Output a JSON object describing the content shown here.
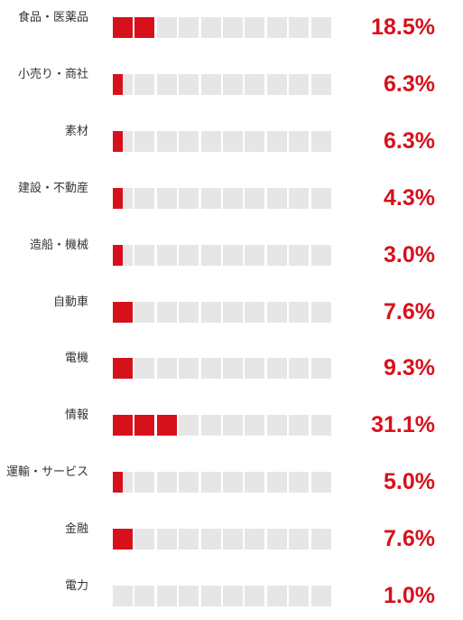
{
  "chart_data": {
    "type": "bar",
    "orientation": "horizontal",
    "categories": [
      "食品・医薬品",
      "小売り・商社",
      "素材",
      "建設・不動産",
      "造船・機械",
      "自動車",
      "電機",
      "情報",
      "運輸・サービス",
      "金融",
      "電力"
    ],
    "values": [
      18.5,
      6.3,
      6.3,
      4.3,
      3.0,
      7.6,
      9.3,
      31.1,
      5.0,
      7.6,
      1.0
    ],
    "value_labels": [
      "18.5%",
      "6.3%",
      "6.3%",
      "4.3%",
      "3.0%",
      "7.6%",
      "9.3%",
      "31.1%",
      "5.0%",
      "7.6%",
      "1.0%"
    ],
    "units_per_cell": 10,
    "cells": 10,
    "filled_cells": [
      2,
      0.5,
      0.5,
      0.5,
      0.5,
      1,
      1,
      3,
      0.5,
      1,
      0
    ],
    "colors": {
      "fill": "#d7111c",
      "empty": "#e6e6e6",
      "value_text": "#d7111c",
      "label_text": "#333333"
    }
  }
}
